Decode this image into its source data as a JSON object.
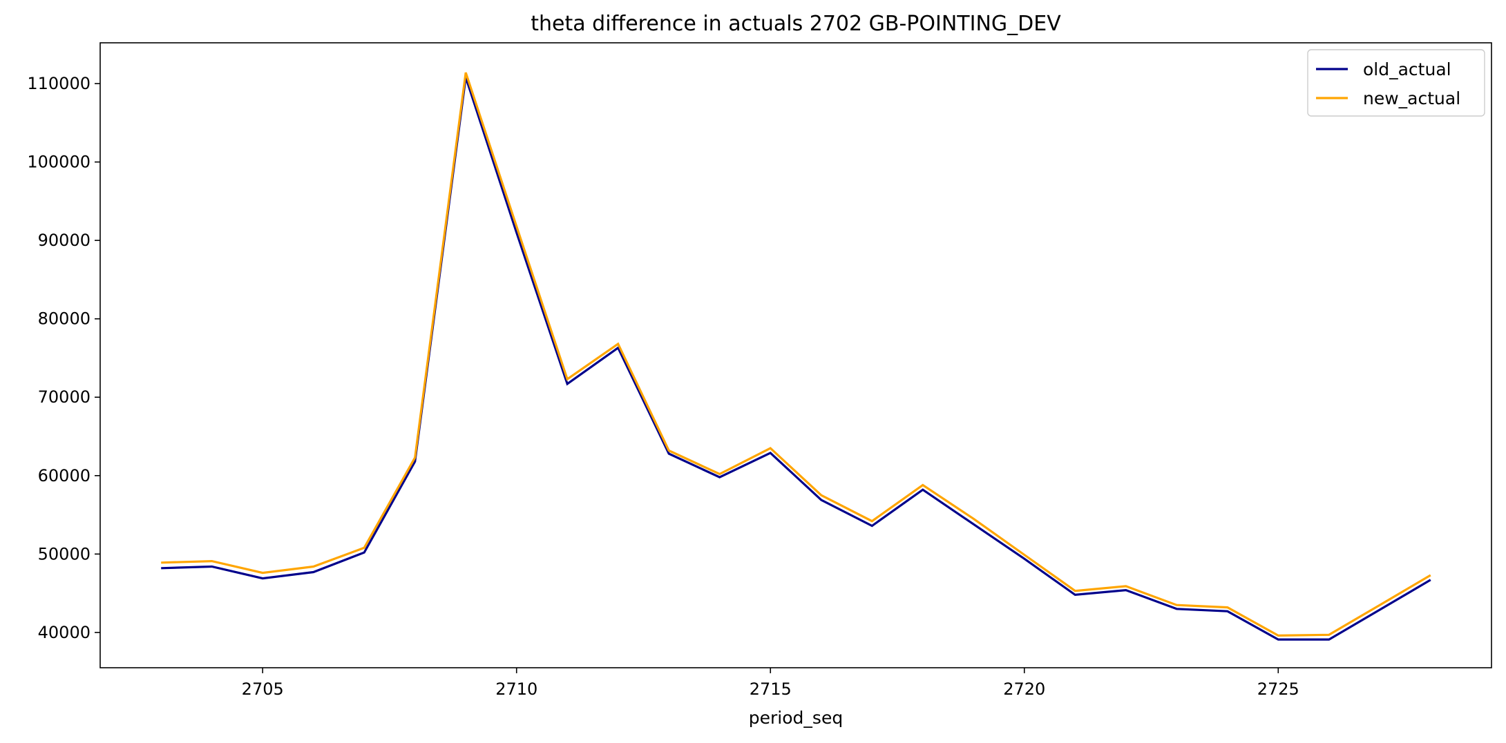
{
  "chart_data": {
    "type": "line",
    "title": "theta difference in actuals 2702 GB-POINTING_DEV",
    "xlabel": "period_seq",
    "ylabel": "",
    "x": [
      2703,
      2704,
      2705,
      2706,
      2707,
      2708,
      2709,
      2710,
      2711,
      2712,
      2713,
      2714,
      2715,
      2716,
      2717,
      2718,
      2719,
      2720,
      2721,
      2722,
      2723,
      2724,
      2725,
      2726,
      2727,
      2728
    ],
    "xlim": [
      2701.8,
      2729.2
    ],
    "ylim": [
      35500,
      115200
    ],
    "xticks": [
      2705,
      2710,
      2715,
      2720,
      2725
    ],
    "yticks": [
      40000,
      50000,
      60000,
      70000,
      80000,
      90000,
      100000,
      110000
    ],
    "series": [
      {
        "name": "old_actual",
        "color": "#00008b",
        "values": [
          48200,
          48400,
          46900,
          47700,
          50200,
          61800,
          110800,
          91000,
          71700,
          76300,
          62800,
          59800,
          62900,
          56900,
          53600,
          58200,
          53800,
          49400,
          44800,
          45400,
          43000,
          42700,
          39100,
          39100,
          42900,
          46700
        ]
      },
      {
        "name": "new_actual",
        "color": "#ffa500",
        "values": [
          48900,
          49100,
          47600,
          48400,
          50800,
          62300,
          111400,
          91800,
          72300,
          76800,
          63200,
          60200,
          63500,
          57500,
          54200,
          58800,
          54500,
          49900,
          45300,
          45900,
          43500,
          43200,
          39600,
          39700,
          43500,
          47300
        ]
      }
    ],
    "grid": false,
    "legend": "top-right"
  }
}
